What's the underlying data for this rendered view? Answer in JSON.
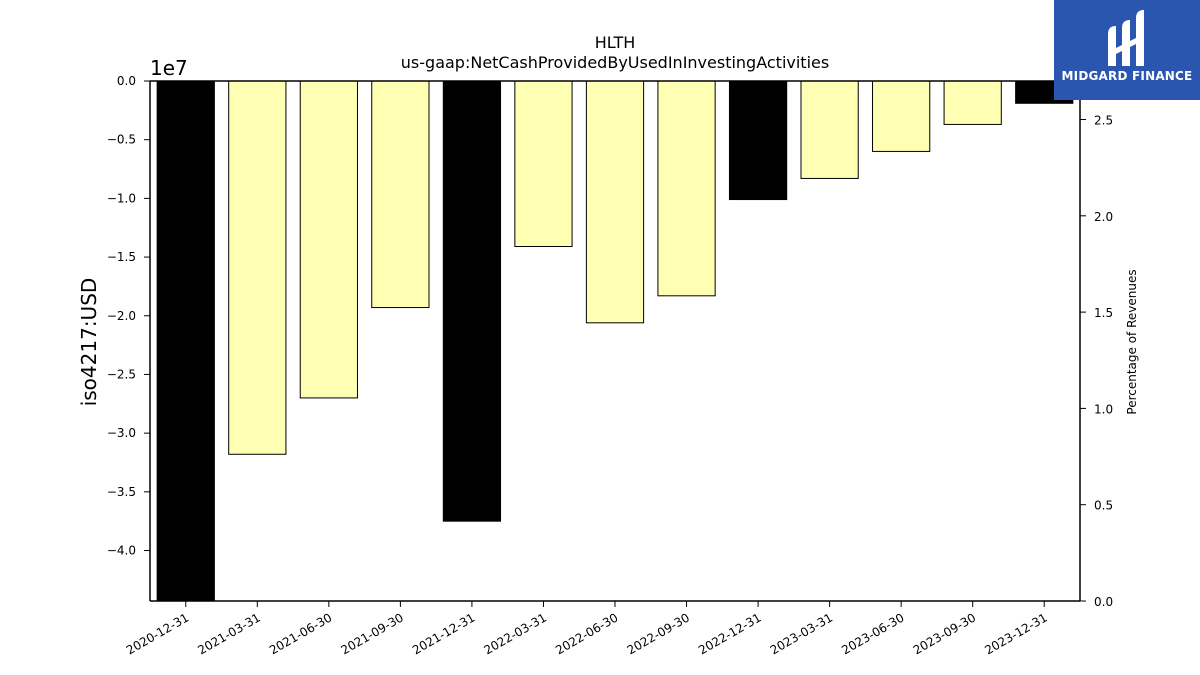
{
  "chart_data": {
    "type": "bar",
    "title": "HLTH",
    "subtitle": "us-gaap:NetCashProvidedByUsedInInvestingActivities",
    "ylabel": "iso4217:USD",
    "y2label": "Percentage of Revenues",
    "y_offset_label": "1e7",
    "ylim": [
      -4.43,
      0.0
    ],
    "y2lim": [
      0.0,
      2.7
    ],
    "yticks": [
      "0.0",
      "−0.5",
      "−1.0",
      "−1.5",
      "−2.0",
      "−2.5",
      "−3.0",
      "−3.5",
      "−4.0"
    ],
    "yticks_values": [
      0.0,
      -0.5,
      -1.0,
      -1.5,
      -2.0,
      -2.5,
      -3.0,
      -3.5,
      -4.0
    ],
    "y2ticks": [
      "0.0",
      "0.5",
      "1.0",
      "1.5",
      "2.0",
      "2.5"
    ],
    "y2ticks_values": [
      0.0,
      0.5,
      1.0,
      1.5,
      2.0,
      2.5
    ],
    "categories": [
      "2020-12-31",
      "2021-03-31",
      "2021-06-30",
      "2021-09-30",
      "2021-12-31",
      "2022-03-31",
      "2022-06-30",
      "2022-09-30",
      "2022-12-31",
      "2023-03-31",
      "2023-06-30",
      "2023-09-30",
      "2023-12-31"
    ],
    "values": [
      -4.43,
      -3.18,
      -2.7,
      -1.93,
      -3.75,
      -1.41,
      -2.06,
      -1.83,
      -1.01,
      -0.83,
      -0.6,
      -0.37,
      -0.19
    ],
    "bar_colors": [
      "#000000",
      "#ffffb3",
      "#ffffb3",
      "#ffffb3",
      "#000000",
      "#ffffb3",
      "#ffffb3",
      "#ffffb3",
      "#000000",
      "#ffffb3",
      "#ffffb3",
      "#ffffb3",
      "#000000"
    ],
    "grid": false
  },
  "logo": {
    "text": "MIDGARD FINANCE",
    "color": "#2a56b0"
  }
}
